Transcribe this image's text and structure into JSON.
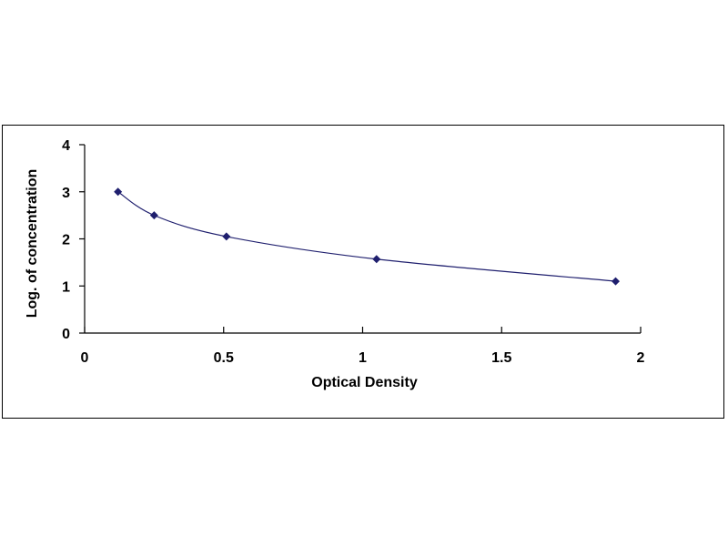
{
  "chart_data": {
    "type": "scatter",
    "title": "",
    "xlabel": "Optical Density",
    "ylabel": "Log. of concentration",
    "xlim": [
      0,
      2
    ],
    "ylim": [
      0,
      4
    ],
    "xticks": [
      "0",
      "0.5",
      "1",
      "1.5",
      "2"
    ],
    "yticks": [
      "0",
      "1",
      "2",
      "3",
      "4"
    ],
    "grid": false,
    "legend": "none",
    "fit_line": true,
    "series": [
      {
        "x": [
          0.12,
          0.25,
          0.51,
          1.05,
          1.91
        ],
        "y": [
          3.0,
          2.5,
          2.05,
          1.57,
          1.1
        ]
      }
    ],
    "colors": {
      "marker": "#1f1f6e",
      "line": "#1f1f6e",
      "axis": "#000000"
    }
  }
}
